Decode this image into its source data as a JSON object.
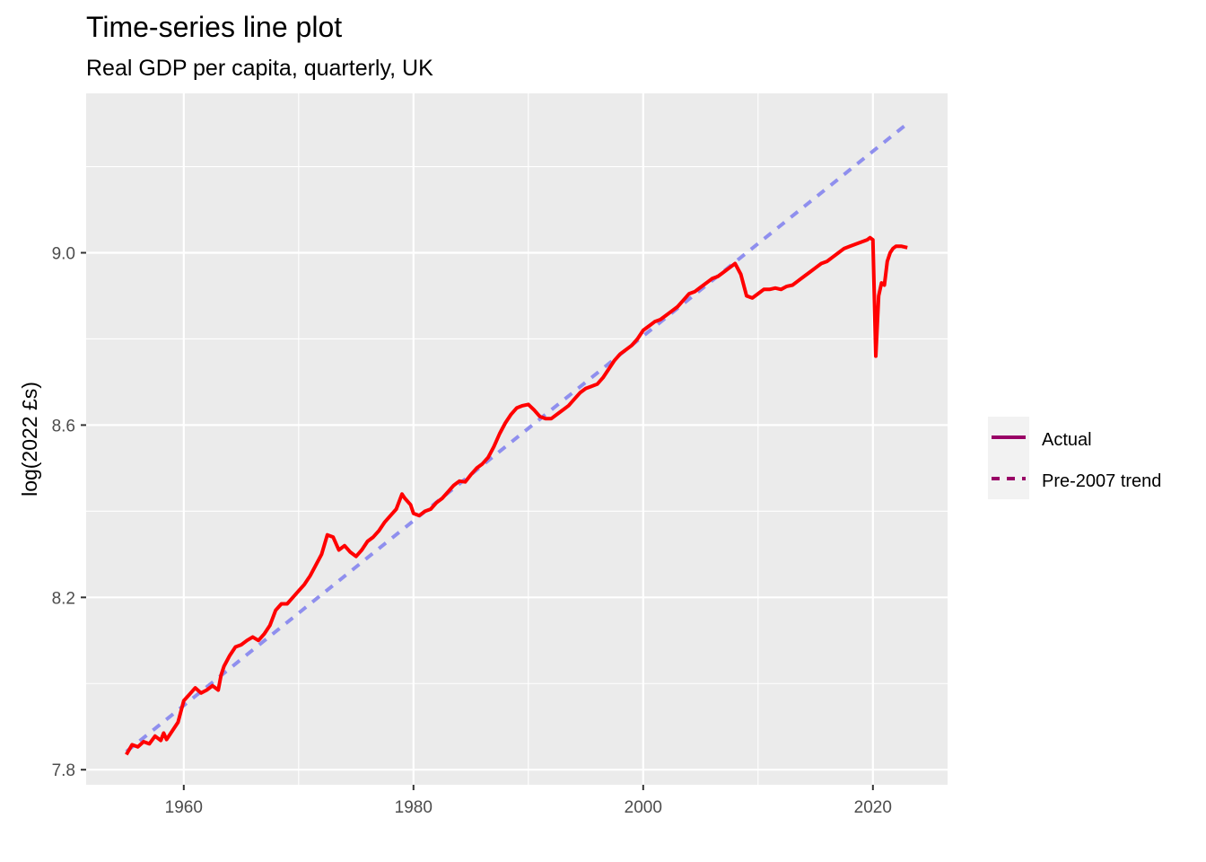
{
  "chart_data": {
    "type": "line",
    "title": "Time-series line plot",
    "subtitle": "Real GDP per capita, quarterly, UK",
    "xlabel": "",
    "ylabel": "log(2022 £s)",
    "xlim": [
      1951.5,
      2026.5
    ],
    "ylim": [
      7.765,
      9.37
    ],
    "x_ticks": [
      1960,
      1980,
      2000,
      2020
    ],
    "x_tick_labels": [
      "1960",
      "1980",
      "2000",
      "2020"
    ],
    "y_ticks": [
      7.8,
      8.2,
      8.6,
      9.0
    ],
    "y_tick_labels": [
      "7.8",
      "8.2",
      "8.6",
      "9.0"
    ],
    "grid": true,
    "panel_background": "#ebebeb",
    "legend_position": "right",
    "legend": [
      {
        "label": "Actual",
        "style": "solid"
      },
      {
        "label": "Pre-2007 trend",
        "style": "dashed"
      }
    ],
    "series": [
      {
        "name": "Actual",
        "color": "#ff0000",
        "style": "solid",
        "x": [
          1955.0,
          1955.5,
          1956.0,
          1956.5,
          1957.0,
          1957.5,
          1958.0,
          1958.25,
          1958.5,
          1959.0,
          1959.5,
          1960.0,
          1960.5,
          1961.0,
          1961.5,
          1962.0,
          1962.5,
          1963.0,
          1963.25,
          1963.5,
          1964.0,
          1964.5,
          1965.0,
          1965.5,
          1966.0,
          1966.5,
          1967.0,
          1967.5,
          1968.0,
          1968.5,
          1969.0,
          1969.5,
          1970.0,
          1970.5,
          1971.0,
          1971.5,
          1972.0,
          1972.5,
          1973.0,
          1973.5,
          1974.0,
          1974.5,
          1975.0,
          1975.5,
          1976.0,
          1976.5,
          1977.0,
          1977.5,
          1978.0,
          1978.5,
          1979.0,
          1979.25,
          1979.75,
          1980.0,
          1980.5,
          1981.0,
          1981.5,
          1982.0,
          1982.5,
          1983.0,
          1983.5,
          1984.0,
          1984.5,
          1985.0,
          1985.5,
          1986.0,
          1986.5,
          1987.0,
          1987.5,
          1988.0,
          1988.5,
          1989.0,
          1989.5,
          1990.0,
          1990.5,
          1991.0,
          1991.5,
          1992.0,
          1992.5,
          1993.0,
          1993.5,
          1994.0,
          1994.5,
          1995.0,
          1995.5,
          1996.0,
          1996.5,
          1997.0,
          1997.5,
          1998.0,
          1998.5,
          1999.0,
          1999.5,
          2000.0,
          2000.5,
          2001.0,
          2001.5,
          2002.0,
          2002.5,
          2003.0,
          2003.5,
          2004.0,
          2004.5,
          2005.0,
          2005.5,
          2006.0,
          2006.5,
          2007.0,
          2007.5,
          2008.0,
          2008.5,
          2009.0,
          2009.5,
          2010.0,
          2010.5,
          2011.0,
          2011.5,
          2012.0,
          2012.5,
          2013.0,
          2013.5,
          2014.0,
          2014.5,
          2015.0,
          2015.5,
          2016.0,
          2016.5,
          2017.0,
          2017.5,
          2018.0,
          2018.5,
          2019.0,
          2019.5,
          2019.75,
          2020.0,
          2020.25,
          2020.5,
          2020.75,
          2021.0,
          2021.25,
          2021.5,
          2021.75,
          2022.0,
          2022.5,
          2023.0
        ],
        "y": [
          7.835,
          7.858,
          7.853,
          7.865,
          7.86,
          7.878,
          7.868,
          7.885,
          7.87,
          7.89,
          7.91,
          7.96,
          7.975,
          7.99,
          7.978,
          7.985,
          7.995,
          7.985,
          8.02,
          8.04,
          8.065,
          8.085,
          8.09,
          8.1,
          8.108,
          8.1,
          8.115,
          8.135,
          8.17,
          8.185,
          8.185,
          8.2,
          8.215,
          8.23,
          8.25,
          8.275,
          8.3,
          8.345,
          8.34,
          8.31,
          8.32,
          8.305,
          8.295,
          8.31,
          8.33,
          8.34,
          8.355,
          8.375,
          8.39,
          8.405,
          8.44,
          8.43,
          8.415,
          8.395,
          8.39,
          8.4,
          8.405,
          8.42,
          8.43,
          8.445,
          8.46,
          8.47,
          8.468,
          8.485,
          8.5,
          8.51,
          8.525,
          8.55,
          8.58,
          8.605,
          8.625,
          8.64,
          8.645,
          8.648,
          8.635,
          8.62,
          8.615,
          8.615,
          8.625,
          8.635,
          8.645,
          8.66,
          8.675,
          8.685,
          8.69,
          8.695,
          8.71,
          8.73,
          8.75,
          8.765,
          8.775,
          8.785,
          8.8,
          8.82,
          8.83,
          8.84,
          8.845,
          8.855,
          8.865,
          8.875,
          8.89,
          8.905,
          8.91,
          8.92,
          8.93,
          8.94,
          8.945,
          8.955,
          8.965,
          8.975,
          8.95,
          8.9,
          8.895,
          8.905,
          8.915,
          8.915,
          8.918,
          8.915,
          8.922,
          8.925,
          8.935,
          8.945,
          8.955,
          8.965,
          8.975,
          8.98,
          8.99,
          9.0,
          9.01,
          9.015,
          9.02,
          9.025,
          9.03,
          9.035,
          9.03,
          8.76,
          8.9,
          8.93,
          8.925,
          8.98,
          9.0,
          9.01,
          9.015,
          9.015,
          9.012
        ]
      },
      {
        "name": "Pre-2007 trend",
        "color": "#8f8fee",
        "style": "dashed",
        "x": [
          1955.0,
          2023.0
        ],
        "y": [
          7.842,
          9.3
        ]
      }
    ]
  }
}
